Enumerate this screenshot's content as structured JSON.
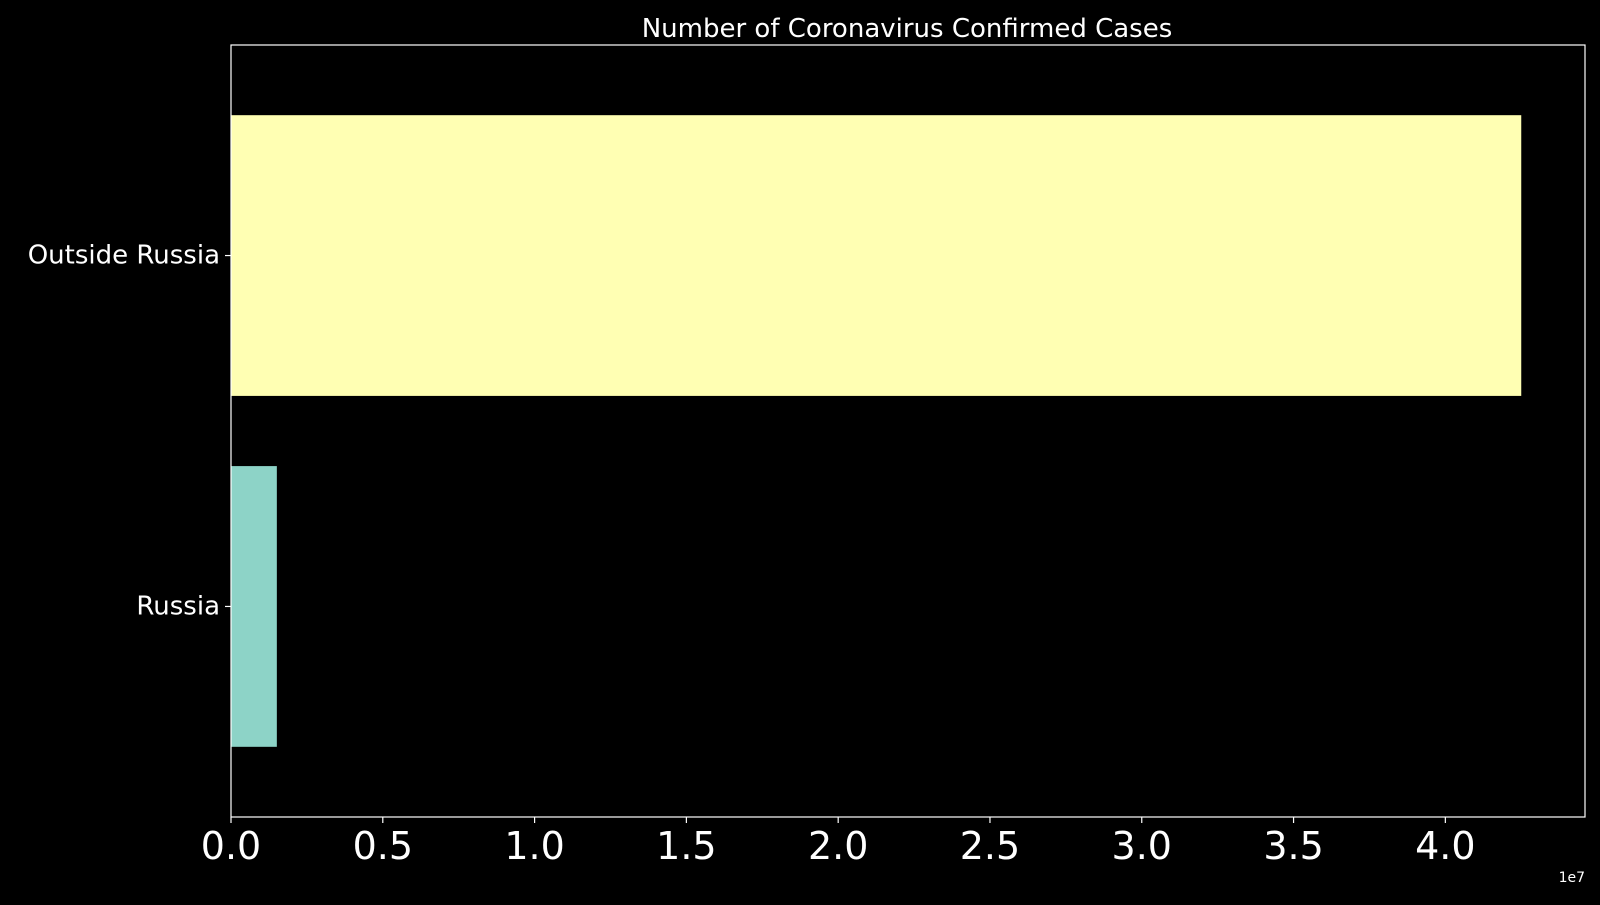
{
  "chart_data": {
    "type": "bar",
    "orientation": "horizontal",
    "title": "Number of Coronavirus Confirmed Cases",
    "xlabel": "",
    "ylabel": "",
    "categories": [
      "Russia",
      "Outside Russia"
    ],
    "values": [
      1510000,
      42500000
    ],
    "colors": [
      "#8dd3c7",
      "#ffffb3"
    ],
    "xlim": [
      0,
      44600000
    ],
    "x_ticks": [
      0,
      5000000,
      10000000,
      15000000,
      20000000,
      25000000,
      30000000,
      35000000,
      40000000
    ],
    "x_tick_labels": [
      "0.0",
      "0.5",
      "1.0",
      "1.5",
      "2.0",
      "2.5",
      "3.0",
      "3.5",
      "4.0"
    ],
    "x_offset_label": "1e7",
    "grid": false,
    "legend": "none",
    "background": "#000000",
    "foreground": "#ffffff"
  }
}
